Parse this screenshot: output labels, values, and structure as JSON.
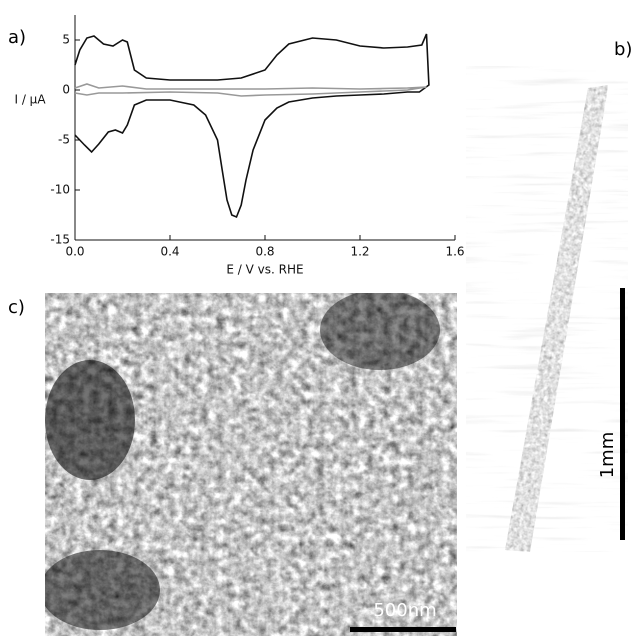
{
  "chart_data": {
    "type": "line",
    "xlabel": "E / V vs. RHE",
    "ylabel": "I / µA",
    "xlim": [
      0,
      1.6
    ],
    "ylim": [
      -15,
      7.5
    ],
    "xticks": [
      {
        "value": 0,
        "label": "0.0"
      },
      0.4,
      0.8,
      1.2,
      1.6
    ],
    "yticks": [
      5,
      0,
      -5,
      -10,
      -15
    ],
    "series": [
      {
        "color": "#111111",
        "x": [
          0.0,
          0.02,
          0.05,
          0.08,
          0.12,
          0.16,
          0.2,
          0.22,
          0.25,
          0.3,
          0.4,
          0.6,
          0.7,
          0.8,
          0.85,
          0.9,
          1.0,
          1.1,
          1.2,
          1.3,
          1.4,
          1.46,
          1.48,
          1.49,
          1.45,
          1.4,
          1.3,
          1.2,
          1.1,
          1.0,
          0.9,
          0.85,
          0.8,
          0.75,
          0.72,
          0.7,
          0.68,
          0.66,
          0.64,
          0.62,
          0.6,
          0.55,
          0.5,
          0.4,
          0.3,
          0.25,
          0.22,
          0.2,
          0.17,
          0.14,
          0.1,
          0.07,
          0.04,
          0.0
        ],
        "values": [
          2.5,
          4.0,
          5.2,
          5.4,
          4.6,
          4.4,
          5.0,
          4.8,
          2.0,
          1.2,
          1.0,
          1.0,
          1.2,
          2.0,
          3.5,
          4.6,
          5.2,
          5.0,
          4.4,
          4.2,
          4.3,
          4.5,
          5.6,
          0.5,
          -0.2,
          -0.2,
          -0.4,
          -0.5,
          -0.6,
          -0.8,
          -1.2,
          -1.8,
          -3.0,
          -6.0,
          -9.0,
          -11.5,
          -12.7,
          -12.5,
          -11.0,
          -8.0,
          -5.0,
          -2.5,
          -1.5,
          -1.0,
          -1.0,
          -1.5,
          -3.5,
          -4.3,
          -4.0,
          -4.2,
          -5.4,
          -6.2,
          -5.5,
          -4.5
        ]
      },
      {
        "color": "#999999",
        "x": [
          0.0,
          0.05,
          0.1,
          0.2,
          0.3,
          0.5,
          0.8,
          1.0,
          1.2,
          1.4,
          1.48,
          1.4,
          1.2,
          1.0,
          0.8,
          0.7,
          0.6,
          0.4,
          0.2,
          0.1,
          0.05,
          0.0
        ],
        "values": [
          0.2,
          0.6,
          0.2,
          0.4,
          0.1,
          0.1,
          0.1,
          0.2,
          0.1,
          0.2,
          0.3,
          0.0,
          -0.2,
          -0.4,
          -0.5,
          -0.6,
          -0.3,
          -0.2,
          -0.3,
          -0.3,
          -0.5,
          -0.3
        ]
      }
    ]
  },
  "panels": {
    "a": "a)",
    "b": "b)",
    "c": "c)"
  },
  "scale_bars": {
    "b": "1mm",
    "c": "500nm"
  }
}
